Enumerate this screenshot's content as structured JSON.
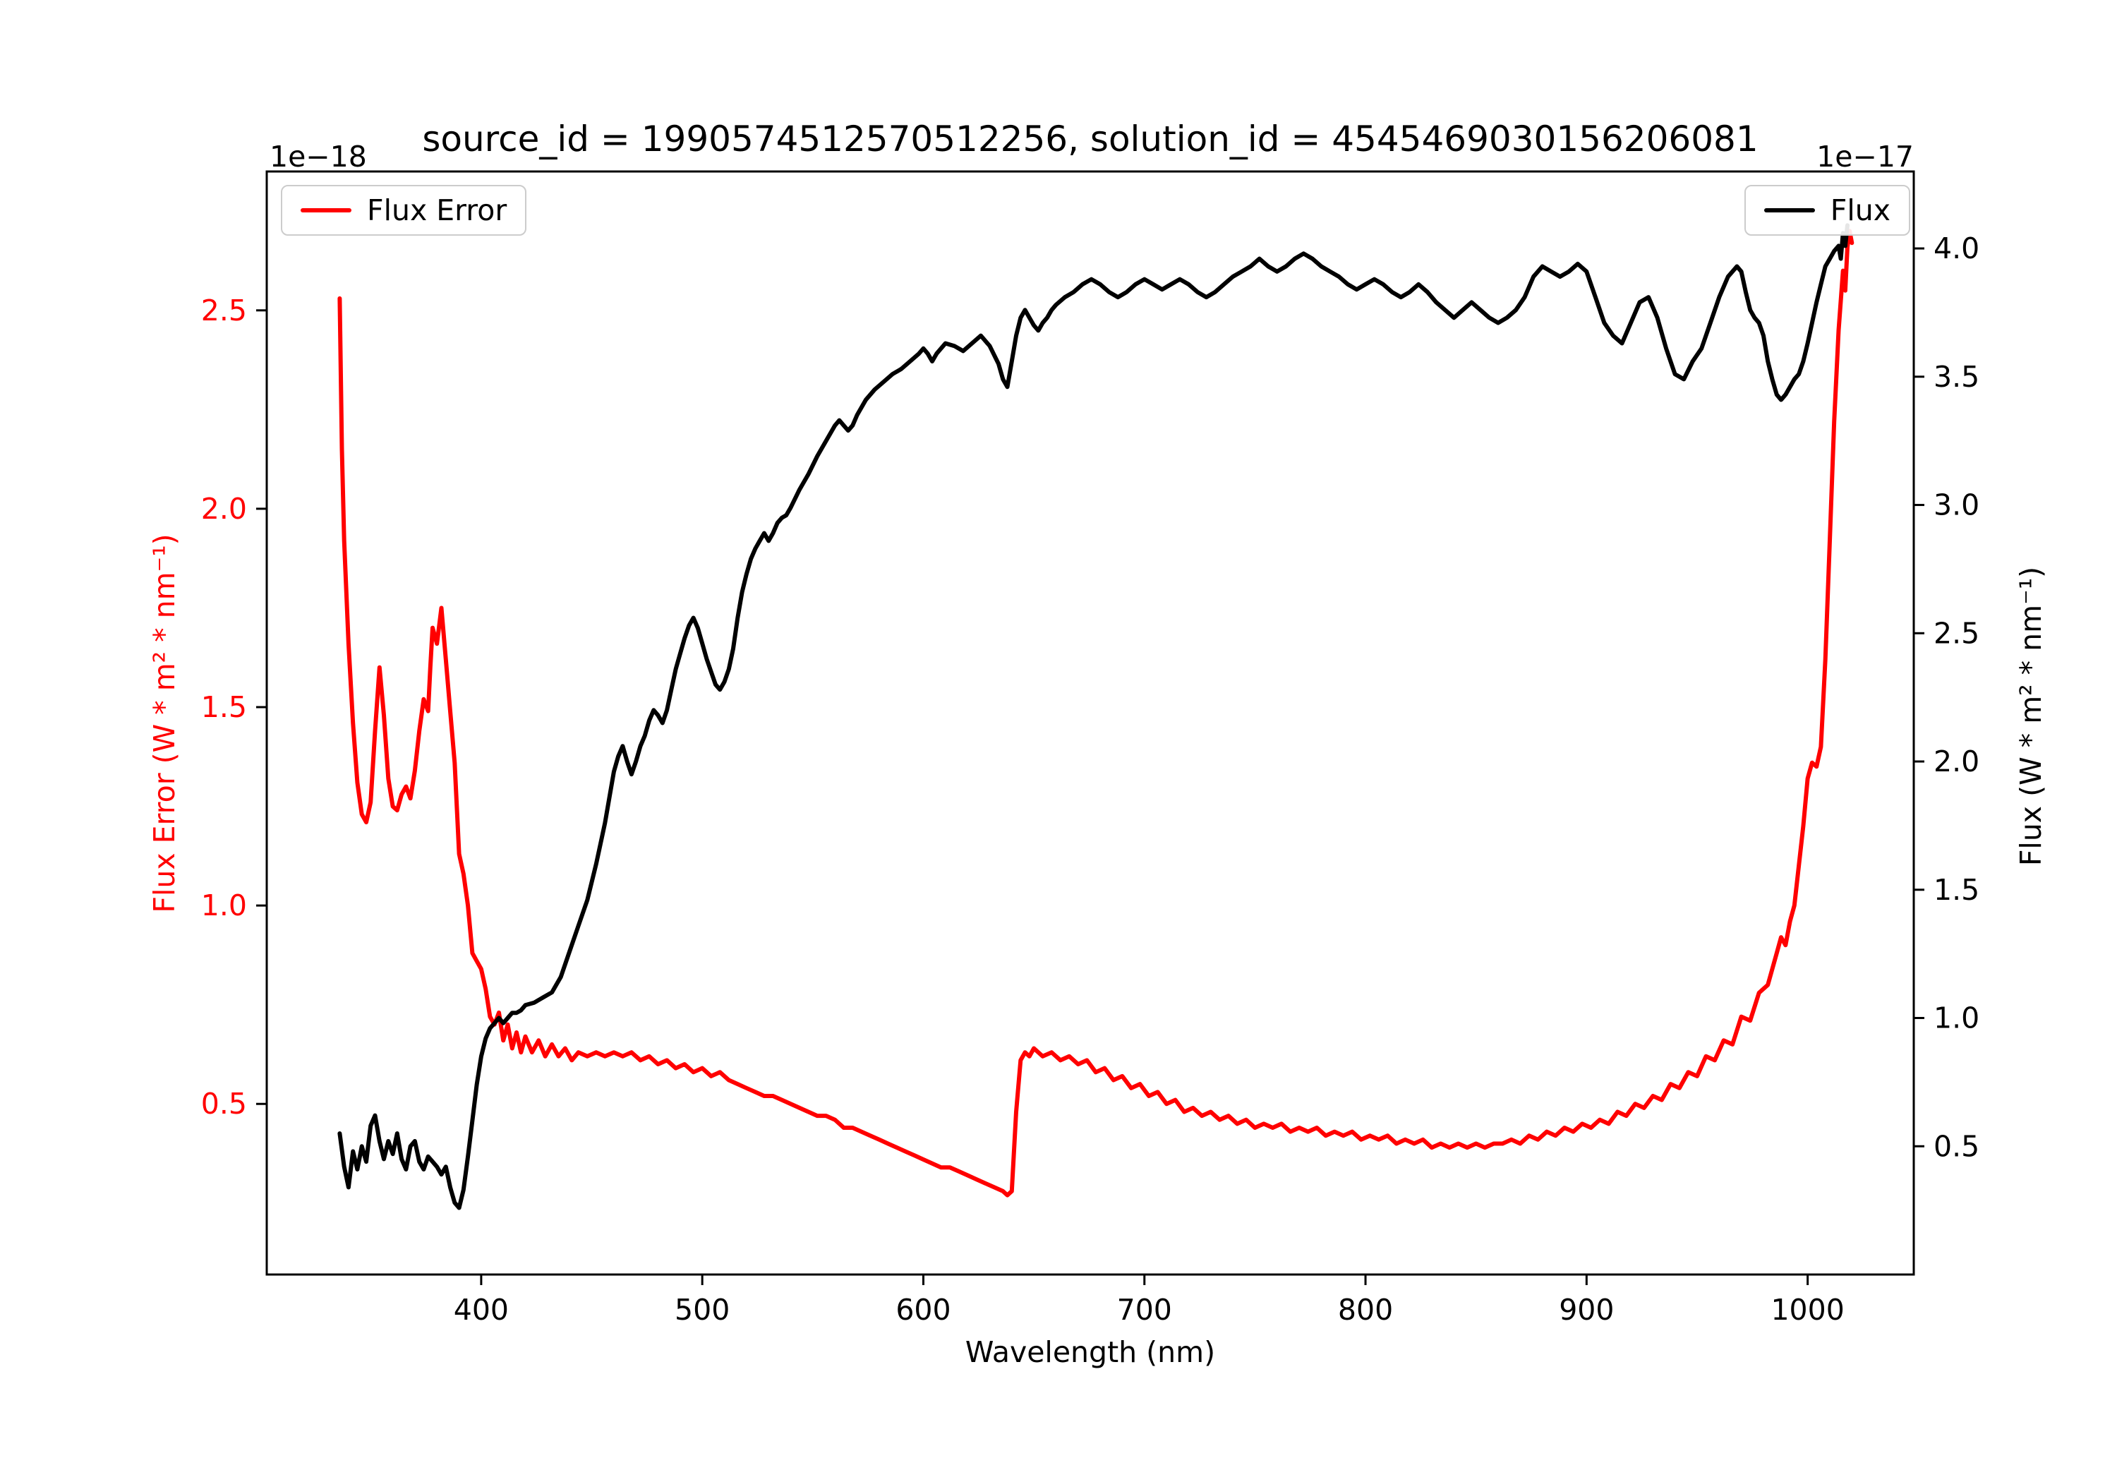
{
  "figure": {
    "title": "source_id = 1990574512570512256, solution_id = 4545469030156206081",
    "background": "#ffffff",
    "frame_color": "#000000"
  },
  "chart_data": {
    "type": "line",
    "title": "source_id = 1990574512570512256, solution_id = 4545469030156206081",
    "xlabel": "Wavelength (nm)",
    "xlim": [
      303,
      1048
    ],
    "xticks": [
      400,
      500,
      600,
      700,
      800,
      900,
      1000
    ],
    "grid": false,
    "left_axis": {
      "label": "Flux Error (W * m² * nm⁻¹)",
      "scale_label": "1e−18",
      "ylim": [
        0.07,
        2.85
      ],
      "yticks": [
        0.5,
        1.0,
        1.5,
        2.0,
        2.5
      ],
      "color": "#ff0000"
    },
    "right_axis": {
      "label": "Flux (W * m² * nm⁻¹)",
      "scale_label": "1e−17",
      "ylim": [
        0.0,
        4.3
      ],
      "yticks": [
        0.5,
        1.0,
        1.5,
        2.0,
        2.5,
        3.0,
        3.5,
        4.0
      ],
      "color": "#000000"
    },
    "legends": [
      {
        "label": "Flux Error",
        "position": "upper-left"
      },
      {
        "label": "Flux",
        "position": "upper-right"
      }
    ],
    "series": [
      {
        "name": "Flux Error",
        "axis": "left",
        "color": "#ff0000",
        "x": [
          336,
          337,
          338,
          340,
          342,
          344,
          346,
          348,
          350,
          352,
          354,
          356,
          358,
          360,
          362,
          364,
          366,
          368,
          370,
          372,
          374,
          376,
          377,
          378,
          380,
          382,
          384,
          386,
          388,
          390,
          392,
          394,
          396,
          398,
          400,
          402,
          404,
          406,
          408,
          410,
          412,
          414,
          416,
          418,
          420,
          423,
          426,
          429,
          432,
          435,
          438,
          441,
          444,
          448,
          452,
          456,
          460,
          464,
          468,
          472,
          476,
          480,
          484,
          488,
          492,
          496,
          500,
          504,
          508,
          512,
          516,
          520,
          524,
          528,
          532,
          536,
          540,
          544,
          548,
          552,
          556,
          560,
          564,
          568,
          572,
          576,
          580,
          584,
          588,
          592,
          596,
          600,
          604,
          608,
          612,
          616,
          620,
          624,
          628,
          632,
          636,
          638,
          640,
          642,
          644,
          646,
          648,
          650,
          654,
          658,
          662,
          666,
          670,
          674,
          678,
          682,
          686,
          690,
          694,
          698,
          702,
          706,
          710,
          714,
          718,
          722,
          726,
          730,
          734,
          738,
          742,
          746,
          750,
          754,
          758,
          762,
          766,
          770,
          774,
          778,
          782,
          786,
          790,
          794,
          798,
          802,
          806,
          810,
          814,
          818,
          822,
          826,
          830,
          834,
          838,
          842,
          846,
          850,
          854,
          858,
          862,
          866,
          870,
          874,
          878,
          882,
          886,
          890,
          894,
          898,
          902,
          906,
          910,
          914,
          918,
          922,
          926,
          930,
          934,
          938,
          942,
          946,
          950,
          954,
          958,
          962,
          966,
          970,
          974,
          978,
          982,
          986,
          988,
          990,
          992,
          994,
          996,
          998,
          1000,
          1002,
          1004,
          1006,
          1008,
          1010,
          1012,
          1014,
          1016,
          1017,
          1018,
          1019,
          1020
        ],
        "y": [
          2.53,
          2.15,
          1.92,
          1.66,
          1.46,
          1.31,
          1.23,
          1.21,
          1.26,
          1.44,
          1.6,
          1.48,
          1.32,
          1.25,
          1.24,
          1.28,
          1.3,
          1.27,
          1.34,
          1.44,
          1.52,
          1.49,
          1.6,
          1.7,
          1.66,
          1.75,
          1.62,
          1.49,
          1.36,
          1.13,
          1.08,
          1.0,
          0.88,
          0.86,
          0.84,
          0.79,
          0.72,
          0.7,
          0.73,
          0.66,
          0.7,
          0.64,
          0.68,
          0.63,
          0.67,
          0.63,
          0.66,
          0.62,
          0.65,
          0.62,
          0.64,
          0.61,
          0.63,
          0.62,
          0.63,
          0.62,
          0.63,
          0.62,
          0.63,
          0.61,
          0.62,
          0.6,
          0.61,
          0.59,
          0.6,
          0.58,
          0.59,
          0.57,
          0.58,
          0.56,
          0.55,
          0.54,
          0.53,
          0.52,
          0.52,
          0.51,
          0.5,
          0.49,
          0.48,
          0.47,
          0.47,
          0.46,
          0.44,
          0.44,
          0.43,
          0.42,
          0.41,
          0.4,
          0.39,
          0.38,
          0.37,
          0.36,
          0.35,
          0.34,
          0.34,
          0.33,
          0.32,
          0.31,
          0.3,
          0.29,
          0.28,
          0.27,
          0.28,
          0.48,
          0.61,
          0.63,
          0.62,
          0.64,
          0.62,
          0.63,
          0.61,
          0.62,
          0.6,
          0.61,
          0.58,
          0.59,
          0.56,
          0.57,
          0.54,
          0.55,
          0.52,
          0.53,
          0.5,
          0.51,
          0.48,
          0.49,
          0.47,
          0.48,
          0.46,
          0.47,
          0.45,
          0.46,
          0.44,
          0.45,
          0.44,
          0.45,
          0.43,
          0.44,
          0.43,
          0.44,
          0.42,
          0.43,
          0.42,
          0.43,
          0.41,
          0.42,
          0.41,
          0.42,
          0.4,
          0.41,
          0.4,
          0.41,
          0.39,
          0.4,
          0.39,
          0.4,
          0.39,
          0.4,
          0.39,
          0.4,
          0.4,
          0.41,
          0.4,
          0.42,
          0.41,
          0.43,
          0.42,
          0.44,
          0.43,
          0.45,
          0.44,
          0.46,
          0.45,
          0.48,
          0.47,
          0.5,
          0.49,
          0.52,
          0.51,
          0.55,
          0.54,
          0.58,
          0.57,
          0.62,
          0.61,
          0.66,
          0.65,
          0.72,
          0.71,
          0.78,
          0.8,
          0.88,
          0.92,
          0.9,
          0.96,
          1.0,
          1.1,
          1.2,
          1.32,
          1.36,
          1.35,
          1.4,
          1.62,
          1.92,
          2.22,
          2.45,
          2.6,
          2.55,
          2.66,
          2.7,
          2.67
        ]
      },
      {
        "name": "Flux",
        "axis": "right",
        "color": "#000000",
        "x": [
          336,
          338,
          340,
          342,
          344,
          346,
          348,
          350,
          352,
          354,
          356,
          358,
          360,
          362,
          364,
          366,
          368,
          370,
          372,
          374,
          376,
          378,
          380,
          382,
          384,
          386,
          388,
          390,
          392,
          394,
          396,
          398,
          400,
          402,
          404,
          406,
          408,
          410,
          412,
          414,
          416,
          418,
          420,
          424,
          428,
          432,
          436,
          440,
          444,
          448,
          452,
          456,
          458,
          460,
          462,
          464,
          466,
          468,
          470,
          472,
          474,
          476,
          478,
          480,
          482,
          484,
          486,
          488,
          490,
          492,
          494,
          496,
          498,
          500,
          502,
          504,
          506,
          508,
          510,
          512,
          514,
          516,
          518,
          520,
          522,
          524,
          526,
          528,
          530,
          532,
          534,
          536,
          538,
          540,
          544,
          548,
          552,
          556,
          560,
          562,
          564,
          566,
          568,
          570,
          574,
          578,
          582,
          586,
          590,
          594,
          598,
          600,
          602,
          604,
          606,
          608,
          610,
          614,
          618,
          622,
          626,
          630,
          634,
          636,
          638,
          640,
          642,
          644,
          646,
          648,
          650,
          652,
          654,
          656,
          658,
          660,
          664,
          668,
          672,
          676,
          680,
          684,
          688,
          692,
          696,
          700,
          704,
          708,
          712,
          716,
          720,
          724,
          728,
          732,
          736,
          740,
          744,
          748,
          752,
          756,
          760,
          764,
          768,
          772,
          776,
          780,
          784,
          788,
          792,
          796,
          800,
          804,
          808,
          812,
          816,
          820,
          824,
          828,
          832,
          836,
          840,
          844,
          848,
          852,
          856,
          860,
          864,
          868,
          872,
          876,
          880,
          884,
          888,
          892,
          896,
          900,
          904,
          908,
          912,
          916,
          920,
          924,
          928,
          932,
          936,
          940,
          944,
          948,
          952,
          956,
          960,
          964,
          968,
          970,
          972,
          974,
          976,
          978,
          980,
          982,
          984,
          986,
          988,
          990,
          992,
          994,
          996,
          998,
          1000,
          1002,
          1004,
          1006,
          1008,
          1010,
          1012,
          1014,
          1015,
          1016,
          1017,
          1018
        ],
        "y": [
          0.55,
          0.42,
          0.34,
          0.48,
          0.41,
          0.5,
          0.44,
          0.58,
          0.62,
          0.52,
          0.45,
          0.52,
          0.47,
          0.55,
          0.45,
          0.41,
          0.5,
          0.52,
          0.44,
          0.41,
          0.46,
          0.44,
          0.42,
          0.39,
          0.42,
          0.34,
          0.28,
          0.26,
          0.33,
          0.46,
          0.6,
          0.74,
          0.85,
          0.92,
          0.96,
          0.98,
          1.0,
          0.98,
          1.0,
          1.02,
          1.02,
          1.03,
          1.05,
          1.06,
          1.08,
          1.1,
          1.16,
          1.26,
          1.36,
          1.46,
          1.6,
          1.76,
          1.86,
          1.96,
          2.02,
          2.06,
          2.0,
          1.95,
          2.0,
          2.06,
          2.1,
          2.16,
          2.2,
          2.18,
          2.15,
          2.2,
          2.28,
          2.36,
          2.42,
          2.48,
          2.53,
          2.56,
          2.52,
          2.46,
          2.4,
          2.35,
          2.3,
          2.28,
          2.31,
          2.36,
          2.44,
          2.56,
          2.66,
          2.73,
          2.79,
          2.83,
          2.86,
          2.89,
          2.86,
          2.89,
          2.93,
          2.95,
          2.96,
          2.99,
          3.06,
          3.12,
          3.19,
          3.25,
          3.31,
          3.33,
          3.31,
          3.29,
          3.31,
          3.35,
          3.41,
          3.45,
          3.48,
          3.51,
          3.53,
          3.56,
          3.59,
          3.61,
          3.59,
          3.56,
          3.59,
          3.61,
          3.63,
          3.62,
          3.6,
          3.63,
          3.66,
          3.62,
          3.55,
          3.49,
          3.46,
          3.56,
          3.66,
          3.73,
          3.76,
          3.73,
          3.7,
          3.68,
          3.71,
          3.73,
          3.76,
          3.78,
          3.81,
          3.83,
          3.86,
          3.88,
          3.86,
          3.83,
          3.81,
          3.83,
          3.86,
          3.88,
          3.86,
          3.84,
          3.86,
          3.88,
          3.86,
          3.83,
          3.81,
          3.83,
          3.86,
          3.89,
          3.91,
          3.93,
          3.96,
          3.93,
          3.91,
          3.93,
          3.96,
          3.98,
          3.96,
          3.93,
          3.91,
          3.89,
          3.86,
          3.84,
          3.86,
          3.88,
          3.86,
          3.83,
          3.81,
          3.83,
          3.86,
          3.83,
          3.79,
          3.76,
          3.73,
          3.76,
          3.79,
          3.76,
          3.73,
          3.71,
          3.73,
          3.76,
          3.81,
          3.89,
          3.93,
          3.91,
          3.89,
          3.91,
          3.94,
          3.91,
          3.81,
          3.71,
          3.66,
          3.63,
          3.71,
          3.79,
          3.81,
          3.73,
          3.61,
          3.51,
          3.49,
          3.56,
          3.61,
          3.71,
          3.81,
          3.89,
          3.93,
          3.91,
          3.83,
          3.76,
          3.73,
          3.71,
          3.66,
          3.56,
          3.49,
          3.43,
          3.41,
          3.43,
          3.46,
          3.49,
          3.51,
          3.56,
          3.63,
          3.71,
          3.79,
          3.86,
          3.93,
          3.96,
          3.99,
          4.01,
          3.96,
          4.06,
          4.01,
          4.09
        ]
      }
    ]
  }
}
